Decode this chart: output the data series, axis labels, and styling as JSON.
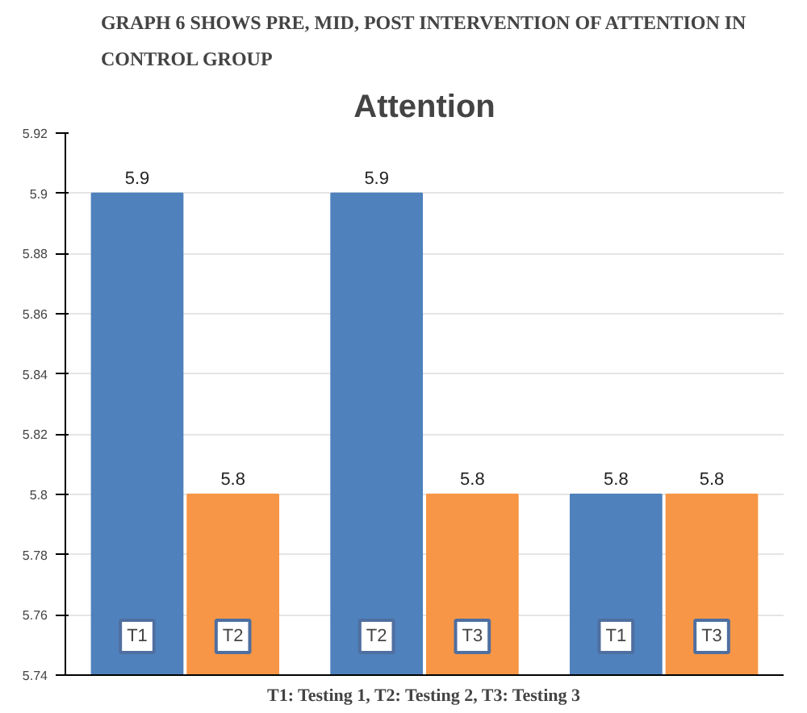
{
  "chart_data": {
    "type": "bar",
    "title": "GRAPH 6 SHOWS PRE, MID, POST INTERVENTION OF ATTENTION IN CONTROL GROUP",
    "subtitle": "Attention",
    "categories": [
      null,
      null,
      null
    ],
    "series": [
      {
        "color": "#4f81bd",
        "values": [
          5.9,
          5.9,
          5.8
        ]
      },
      {
        "color": "#f79646",
        "values": [
          5.8,
          5.8,
          5.8
        ]
      }
    ],
    "ylim": [
      5.74,
      5.92
    ],
    "yticks": [
      5.74,
      5.76,
      5.78,
      5.8,
      5.82,
      5.84,
      5.86,
      5.88,
      5.9,
      5.92
    ],
    "grid": "y",
    "data_labels": true,
    "annotations": [
      "T1",
      "T2",
      "T2",
      "T3",
      "T1",
      "T3",
      "T1: Testing 1, T2: Testing 2, T3: Testing 3"
    ]
  }
}
